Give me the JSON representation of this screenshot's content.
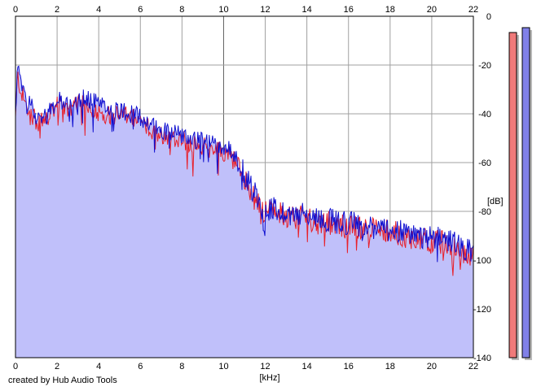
{
  "chart_data": {
    "type": "area",
    "xlabel": "[kHz]",
    "ylabel": "[dB]",
    "xlim": [
      0,
      22
    ],
    "ylim": [
      -140,
      0
    ],
    "x_ticks": [
      0,
      2,
      4,
      6,
      8,
      10,
      12,
      14,
      16,
      18,
      20,
      22
    ],
    "y_ticks": [
      0,
      -20,
      -40,
      -60,
      -80,
      -100,
      -120,
      -140
    ],
    "grid": true,
    "series": [
      {
        "color": "#e8202a",
        "x": [
          0,
          0.1,
          0.25,
          0.5,
          0.75,
          1,
          1.5,
          2,
          2.5,
          3,
          3.5,
          4,
          4.5,
          5,
          5.5,
          6,
          6.5,
          7,
          7.5,
          8,
          8.5,
          9,
          9.5,
          10,
          10.5,
          11,
          11.5,
          12,
          12.5,
          13,
          13.5,
          14,
          14.5,
          15,
          15.5,
          16,
          16.5,
          17,
          17.5,
          18,
          18.5,
          19,
          19.5,
          20,
          20.5,
          21,
          21.5,
          22
        ],
        "values": [
          -42,
          -24,
          -30,
          -36,
          -39,
          -43,
          -42,
          -36,
          -38,
          -36,
          -36,
          -39,
          -40,
          -40,
          -41,
          -43,
          -46,
          -48,
          -49,
          -50,
          -52,
          -53,
          -54,
          -55,
          -58,
          -66,
          -75,
          -79,
          -80,
          -81,
          -82,
          -82,
          -84,
          -84,
          -85,
          -86,
          -86,
          -87,
          -87,
          -88,
          -89,
          -90,
          -91,
          -92,
          -92,
          -94,
          -96,
          -98
        ]
      },
      {
        "color": "#1010d0",
        "x": [
          0,
          0.1,
          0.25,
          0.5,
          0.75,
          1,
          1.5,
          2,
          2.5,
          3,
          3.5,
          4,
          4.5,
          5,
          5.5,
          6,
          6.5,
          7,
          7.5,
          8,
          8.5,
          9,
          9.5,
          10,
          10.5,
          11,
          11.5,
          12,
          12.5,
          13,
          13.5,
          14,
          14.5,
          15,
          15.5,
          16,
          16.5,
          17,
          17.5,
          18,
          18.5,
          19,
          19.5,
          20,
          20.5,
          21,
          21.5,
          22
        ],
        "values": [
          -40,
          -20,
          -28,
          -33,
          -36,
          -41,
          -40,
          -34,
          -35,
          -34,
          -33,
          -36,
          -38,
          -38,
          -39,
          -41,
          -44,
          -46,
          -47,
          -48,
          -50,
          -51,
          -52,
          -53,
          -56,
          -64,
          -72,
          -77,
          -79,
          -80,
          -81,
          -81,
          -82,
          -83,
          -84,
          -84,
          -85,
          -86,
          -86,
          -87,
          -88,
          -89,
          -90,
          -90,
          -91,
          -92,
          -94,
          -97
        ]
      }
    ],
    "meters": [
      {
        "color": "#f07a7a",
        "level_db": -4
      },
      {
        "color": "#8080e8",
        "level_db": -2
      }
    ]
  },
  "footer": {
    "credit": "created by Hub Audio Tools"
  }
}
